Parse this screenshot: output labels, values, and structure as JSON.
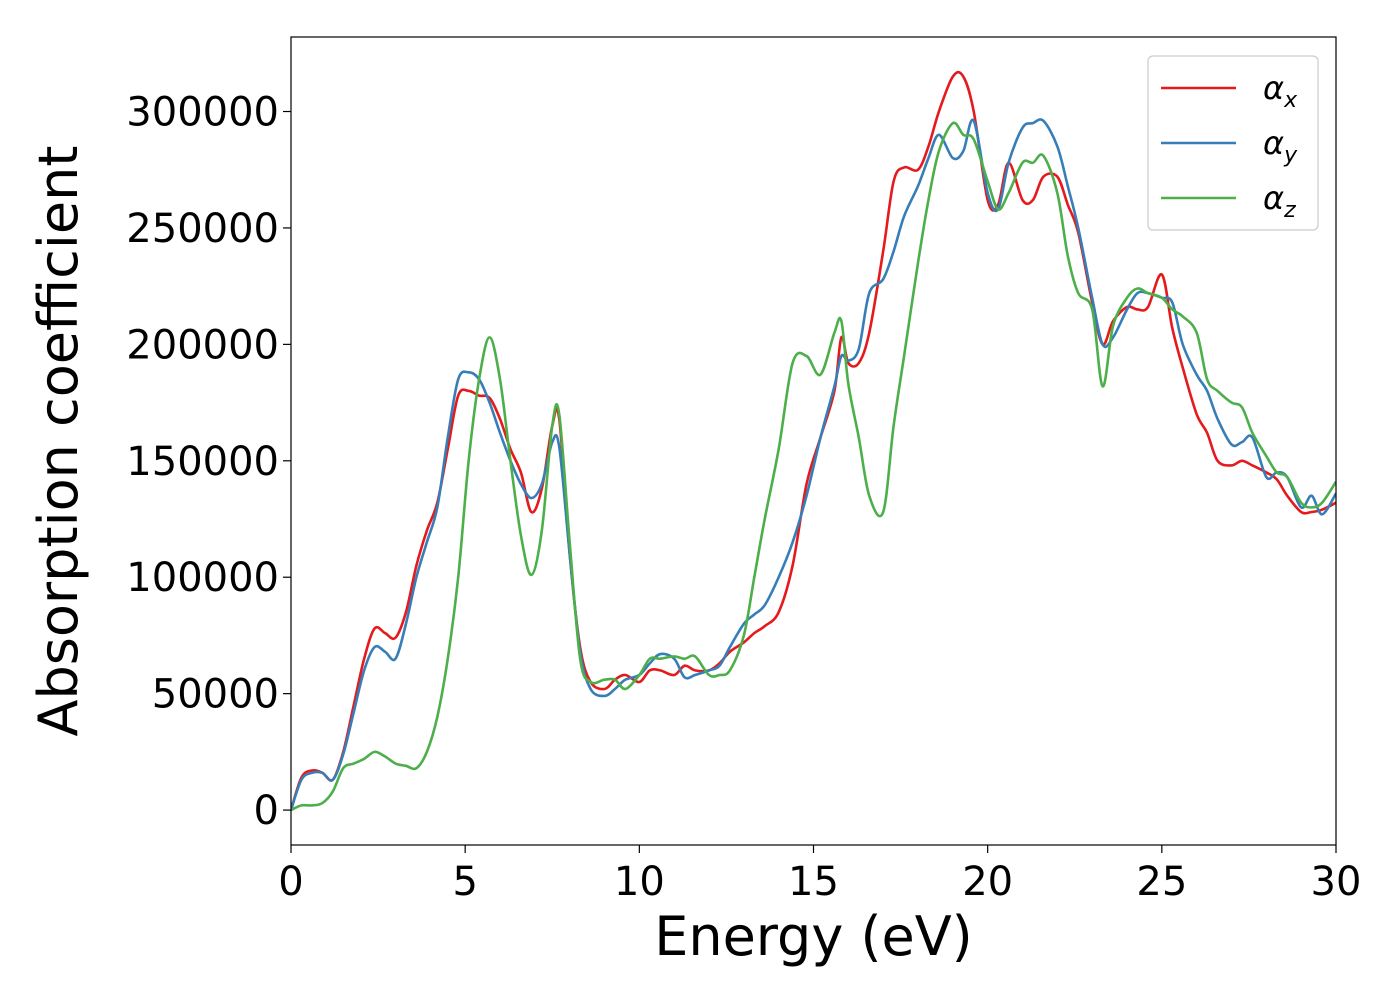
{
  "chart_data": {
    "type": "line",
    "title": "",
    "xlabel": "Energy (eV)",
    "ylabel": "Absorption coefficient",
    "xlim": [
      0,
      30
    ],
    "ylim": [
      -15000,
      332000
    ],
    "xticks": [
      0,
      5,
      10,
      15,
      20,
      25,
      30
    ],
    "xtick_labels": [
      "0",
      "5",
      "10",
      "15",
      "20",
      "25",
      "30"
    ],
    "yticks": [
      0,
      50000,
      100000,
      150000,
      200000,
      250000,
      300000
    ],
    "ytick_labels": [
      "0",
      "50000",
      "100000",
      "150000",
      "200000",
      "250000",
      "300000"
    ],
    "grid": false,
    "legend_position": "top-right",
    "series": [
      {
        "name": "αx",
        "symbol": "α",
        "subscript": "x",
        "color": "#e41a1c",
        "x": [
          0,
          0.3,
          0.6,
          0.9,
          1.2,
          1.5,
          1.8,
          2.1,
          2.4,
          2.7,
          3.0,
          3.3,
          3.6,
          3.9,
          4.2,
          4.5,
          4.8,
          5.1,
          5.4,
          5.7,
          6.0,
          6.3,
          6.6,
          6.9,
          7.2,
          7.5,
          7.7,
          8.0,
          8.3,
          8.6,
          9.0,
          9.3,
          9.6,
          10.0,
          10.3,
          10.6,
          11.0,
          11.3,
          11.6,
          12.0,
          12.3,
          12.6,
          13.0,
          13.3,
          13.6,
          14.0,
          14.4,
          14.8,
          15.2,
          15.6,
          15.8,
          16.0,
          16.3,
          16.6,
          17.0,
          17.3,
          17.6,
          18.0,
          18.3,
          18.6,
          19.0,
          19.3,
          19.6,
          20.0,
          20.3,
          20.6,
          21.0,
          21.3,
          21.6,
          22.0,
          22.3,
          22.6,
          23.0,
          23.3,
          23.6,
          24.0,
          24.3,
          24.6,
          25.0,
          25.3,
          25.6,
          26.0,
          26.3,
          26.6,
          27.0,
          27.3,
          27.6,
          28.0,
          28.3,
          28.6,
          29.0,
          29.3,
          29.6,
          30.0
        ],
        "values": [
          0,
          14000,
          17000,
          16000,
          13000,
          25000,
          45000,
          65000,
          78000,
          76000,
          74000,
          85000,
          105000,
          120000,
          132000,
          155000,
          178000,
          180000,
          178000,
          177000,
          168000,
          155000,
          145000,
          128000,
          138000,
          165000,
          168000,
          110000,
          70000,
          55000,
          52000,
          56000,
          58000,
          55000,
          60000,
          60000,
          58000,
          62000,
          60000,
          60000,
          63000,
          68000,
          72000,
          76000,
          79000,
          85000,
          105000,
          140000,
          160000,
          180000,
          203000,
          192000,
          192000,
          205000,
          240000,
          270000,
          276000,
          275000,
          285000,
          300000,
          315000,
          315000,
          300000,
          262000,
          260000,
          278000,
          262000,
          262000,
          272000,
          272000,
          260000,
          248000,
          218000,
          200000,
          210000,
          216000,
          215000,
          216000,
          230000,
          207000,
          190000,
          170000,
          162000,
          150000,
          148000,
          150000,
          148000,
          145000,
          142000,
          135000,
          128000,
          128000,
          129000,
          132000
        ]
      },
      {
        "name": "αy",
        "symbol": "α",
        "subscript": "y",
        "color": "#377eb8",
        "x": [
          0,
          0.3,
          0.6,
          0.9,
          1.2,
          1.5,
          1.8,
          2.1,
          2.4,
          2.7,
          3.0,
          3.3,
          3.6,
          3.9,
          4.2,
          4.5,
          4.8,
          5.1,
          5.4,
          5.7,
          6.0,
          6.3,
          6.6,
          6.9,
          7.2,
          7.5,
          7.7,
          8.0,
          8.3,
          8.6,
          9.0,
          9.3,
          9.6,
          10.0,
          10.3,
          10.6,
          11.0,
          11.3,
          11.6,
          12.0,
          12.3,
          12.6,
          13.0,
          13.3,
          13.6,
          14.0,
          14.4,
          14.8,
          15.2,
          15.6,
          15.8,
          16.0,
          16.3,
          16.6,
          17.0,
          17.3,
          17.6,
          18.0,
          18.3,
          18.6,
          19.0,
          19.3,
          19.6,
          20.0,
          20.3,
          20.6,
          21.0,
          21.3,
          21.6,
          22.0,
          22.3,
          22.6,
          23.0,
          23.3,
          23.6,
          24.0,
          24.3,
          24.6,
          25.0,
          25.3,
          25.6,
          26.0,
          26.3,
          26.6,
          27.0,
          27.3,
          27.6,
          28.0,
          28.3,
          28.6,
          29.0,
          29.3,
          29.6,
          30.0
        ],
        "values": [
          0,
          13000,
          16000,
          16000,
          13000,
          24000,
          42000,
          60000,
          70000,
          68000,
          65000,
          80000,
          100000,
          115000,
          130000,
          160000,
          185000,
          188000,
          185000,
          175000,
          162000,
          150000,
          140000,
          134000,
          140000,
          158000,
          156000,
          110000,
          68000,
          52000,
          49000,
          52000,
          56000,
          58000,
          63000,
          67000,
          65000,
          57000,
          58000,
          60000,
          62000,
          70000,
          80000,
          84000,
          88000,
          100000,
          115000,
          135000,
          160000,
          182000,
          195000,
          193000,
          198000,
          222000,
          228000,
          240000,
          255000,
          268000,
          280000,
          290000,
          280000,
          283000,
          296000,
          265000,
          258000,
          278000,
          293000,
          295000,
          296000,
          285000,
          268000,
          250000,
          220000,
          200000,
          203000,
          215000,
          222000,
          222000,
          220000,
          218000,
          200000,
          187000,
          180000,
          168000,
          157000,
          158000,
          160000,
          143000,
          145000,
          143000,
          130000,
          135000,
          127000,
          136000
        ]
      },
      {
        "name": "αz",
        "symbol": "α",
        "subscript": "z",
        "color": "#4daf4a",
        "x": [
          0,
          0.3,
          0.6,
          0.9,
          1.2,
          1.5,
          1.8,
          2.1,
          2.4,
          2.7,
          3.0,
          3.3,
          3.6,
          3.9,
          4.2,
          4.5,
          4.8,
          5.1,
          5.4,
          5.7,
          6.0,
          6.3,
          6.6,
          6.9,
          7.2,
          7.5,
          7.7,
          8.0,
          8.3,
          8.6,
          9.0,
          9.3,
          9.6,
          10.0,
          10.3,
          10.6,
          11.0,
          11.3,
          11.6,
          12.0,
          12.3,
          12.6,
          13.0,
          13.3,
          13.6,
          14.0,
          14.4,
          14.8,
          15.2,
          15.6,
          15.8,
          16.0,
          16.3,
          16.6,
          17.0,
          17.3,
          17.6,
          18.0,
          18.3,
          18.6,
          19.0,
          19.3,
          19.6,
          20.0,
          20.3,
          20.6,
          21.0,
          21.3,
          21.6,
          22.0,
          22.3,
          22.6,
          23.0,
          23.3,
          23.6,
          24.0,
          24.3,
          24.6,
          25.0,
          25.3,
          25.6,
          26.0,
          26.3,
          26.6,
          27.0,
          27.3,
          27.6,
          28.0,
          28.3,
          28.6,
          29.0,
          29.3,
          29.6,
          30.0
        ],
        "values": [
          0,
          2000,
          2000,
          3000,
          8000,
          18000,
          20000,
          22000,
          25000,
          23000,
          20000,
          19000,
          18000,
          25000,
          40000,
          65000,
          100000,
          150000,
          185000,
          203000,
          185000,
          150000,
          118000,
          101000,
          120000,
          165000,
          170000,
          115000,
          65000,
          55000,
          56000,
          56000,
          52000,
          58000,
          65000,
          65000,
          66000,
          65000,
          66000,
          58000,
          58000,
          60000,
          75000,
          100000,
          125000,
          155000,
          192000,
          195000,
          187000,
          205000,
          210000,
          183000,
          160000,
          135000,
          128000,
          165000,
          195000,
          235000,
          262000,
          283000,
          295000,
          290000,
          288000,
          270000,
          258000,
          265000,
          278000,
          278000,
          281000,
          265000,
          238000,
          222000,
          215000,
          182000,
          208000,
          220000,
          224000,
          222000,
          220000,
          215000,
          212000,
          205000,
          185000,
          180000,
          175000,
          173000,
          162000,
          152000,
          145000,
          143000,
          132000,
          130000,
          132000,
          141000
        ]
      }
    ]
  }
}
